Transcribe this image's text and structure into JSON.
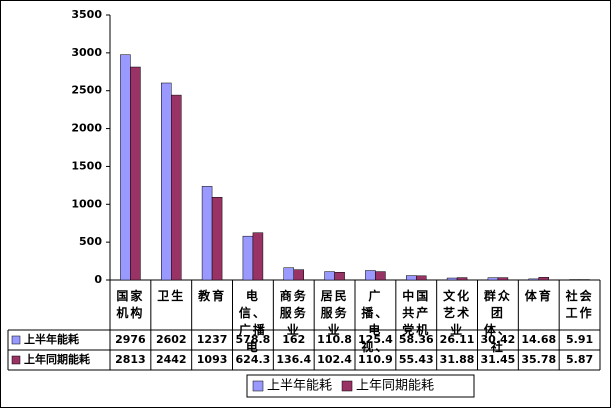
{
  "chart_data": {
    "type": "bar",
    "categories": [
      "国家机构",
      "卫生",
      "教育",
      "电信、广播电",
      "商务服务业",
      "居民服务业",
      "广播、电视、",
      "中国共产党机",
      "文化艺术业",
      "群众团体、社",
      "体育",
      "社会工作"
    ],
    "series": [
      {
        "name": "上半年能耗",
        "color": "#9999ff",
        "values": [
          2976,
          2602,
          1237,
          578.8,
          162,
          110.8,
          125.4,
          58.36,
          26.11,
          30.42,
          14.68,
          5.91
        ]
      },
      {
        "name": "上年同期能耗",
        "color": "#993366",
        "values": [
          2813,
          2442,
          1093,
          624.3,
          136.4,
          102.4,
          110.9,
          55.43,
          31.88,
          31.45,
          35.78,
          5.87
        ]
      }
    ],
    "ylim": [
      0,
      3500
    ],
    "yticks": [
      0,
      500,
      1000,
      1500,
      2000,
      2500,
      3000,
      3500
    ]
  }
}
